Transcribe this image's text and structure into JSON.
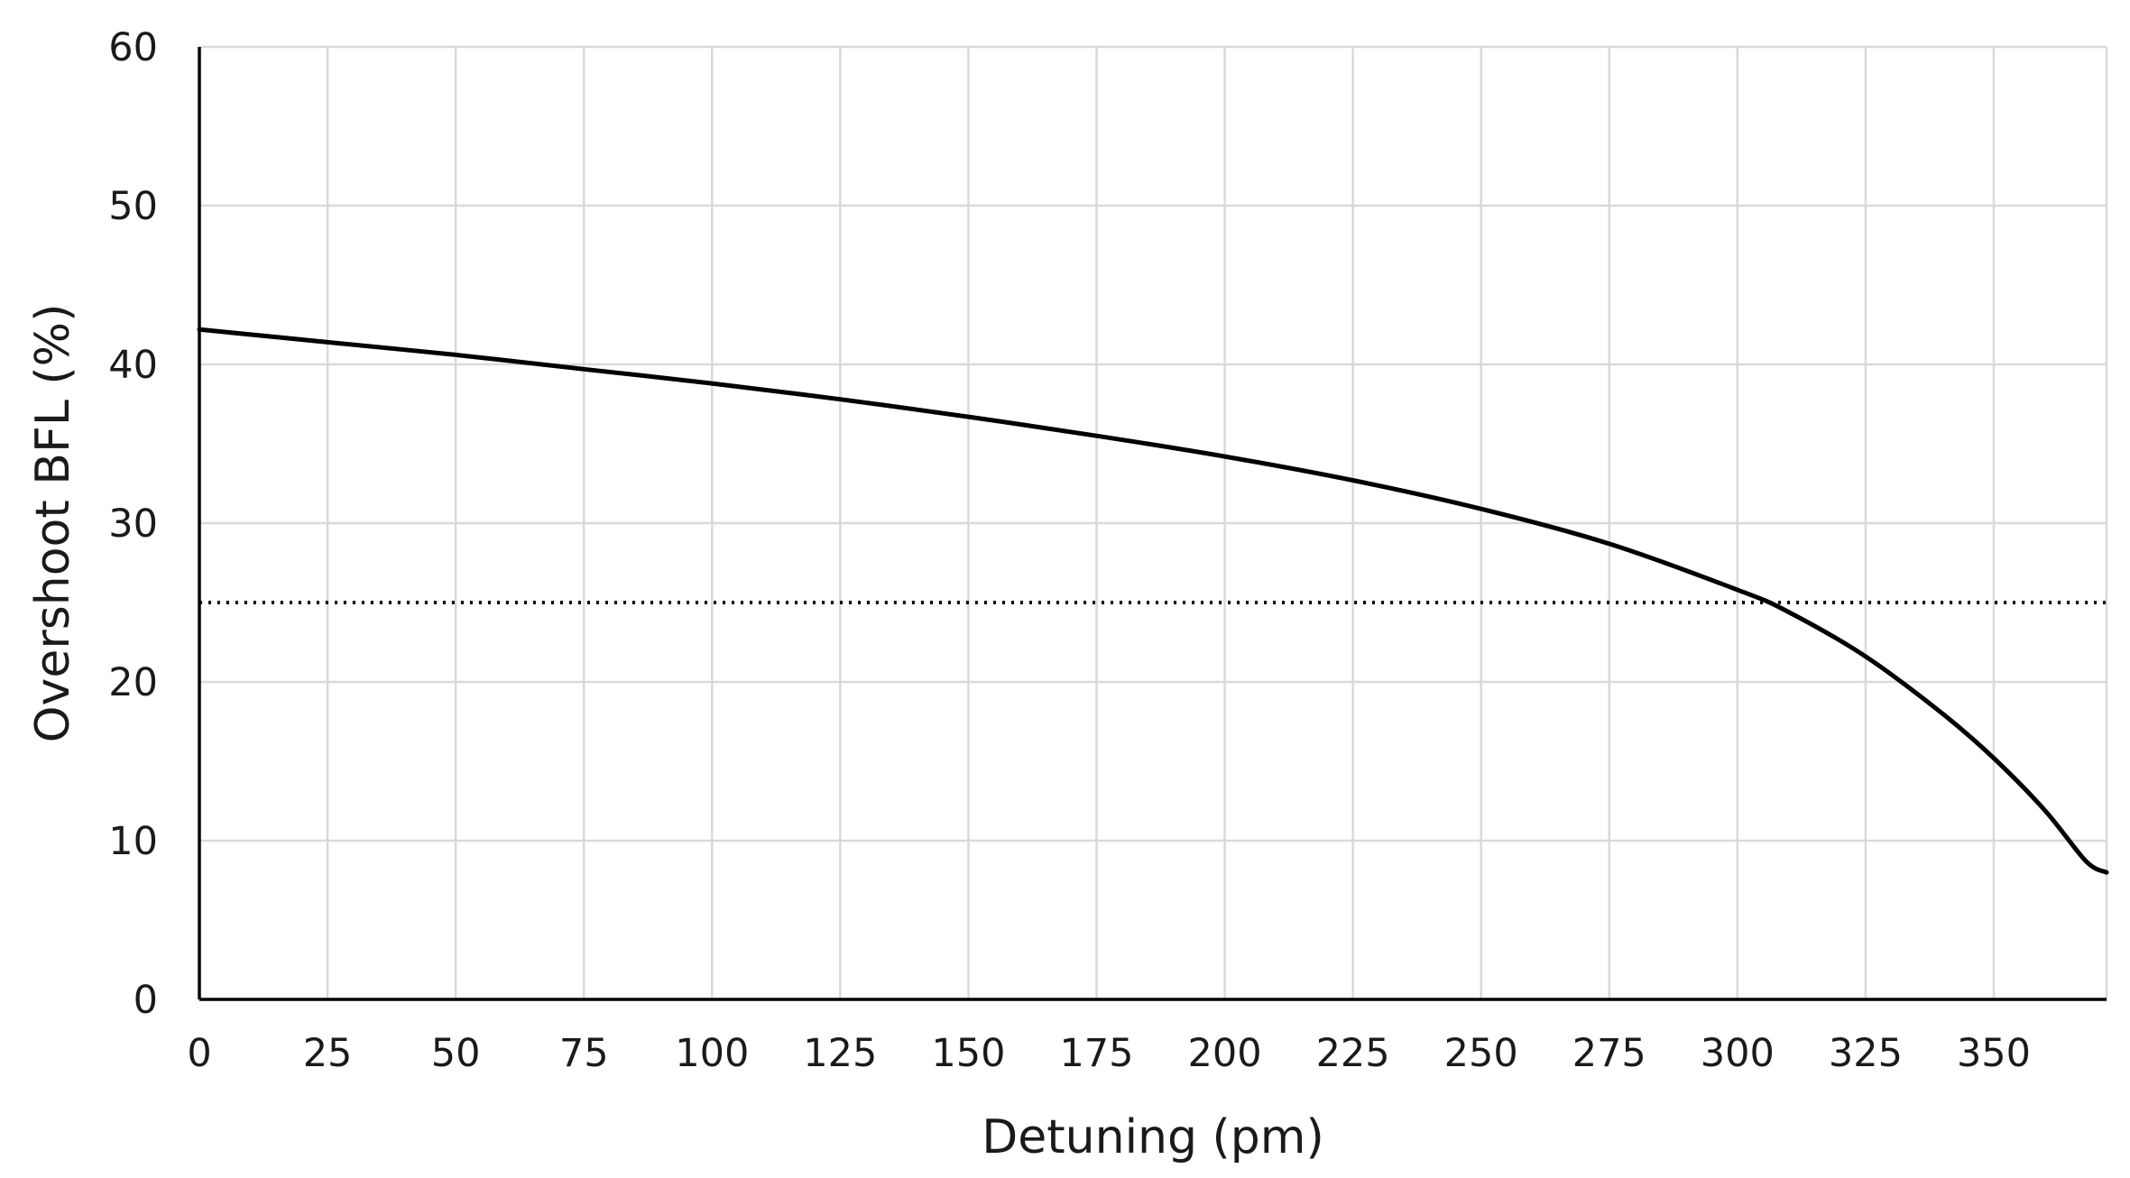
{
  "chart_data": {
    "type": "line",
    "xlabel": "Detuning (pm)",
    "ylabel": "Overshoot BFL (%)",
    "xlim": [
      0,
      372
    ],
    "ylim": [
      0,
      60
    ],
    "x_ticks": [
      0,
      25,
      50,
      75,
      100,
      125,
      150,
      175,
      200,
      225,
      250,
      275,
      300,
      325,
      350
    ],
    "y_ticks": [
      0,
      10,
      20,
      30,
      40,
      50,
      60
    ],
    "grid": true,
    "legend": "none",
    "series": [
      {
        "color": "#000000",
        "style": "solid",
        "x": [
          0,
          25,
          50,
          75,
          100,
          125,
          150,
          175,
          200,
          225,
          250,
          275,
          300,
          310,
          325,
          340,
          350,
          360,
          368,
          372
        ],
        "y": [
          42.2,
          41.4,
          40.6,
          39.7,
          38.8,
          37.8,
          36.7,
          35.5,
          34.2,
          32.7,
          30.9,
          28.7,
          25.8,
          24.4,
          21.6,
          18.0,
          15.2,
          11.9,
          8.7,
          8.0
        ]
      },
      {
        "color": "#000000",
        "style": "dotted",
        "x": [
          0,
          372
        ],
        "y": [
          25,
          25
        ]
      }
    ]
  }
}
